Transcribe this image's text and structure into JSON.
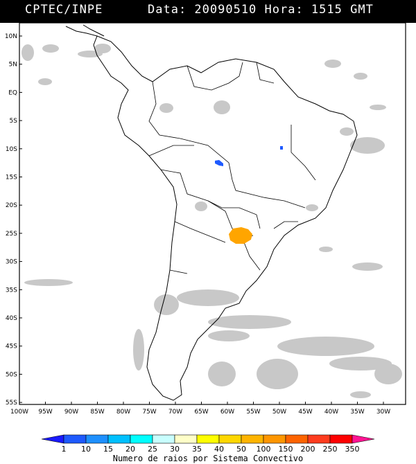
{
  "header": {
    "source": "CPTEC/INPE",
    "datetime": "Data: 20090510 Hora: 1515 GMT"
  },
  "map": {
    "lat_labels": [
      "10N",
      "5N",
      "EQ",
      "5S",
      "10S",
      "15S",
      "20S",
      "25S",
      "30S",
      "35S",
      "40S",
      "45S",
      "50S",
      "55S"
    ],
    "lon_labels": [
      "100W",
      "95W",
      "90W",
      "85W",
      "80W",
      "75W",
      "70W",
      "65W",
      "60W",
      "55W",
      "50W",
      "45W",
      "40W",
      "35W",
      "30W"
    ],
    "colors": {
      "land_border": "#000000",
      "cloud": "#c8c8c8",
      "bg": "#ffffff",
      "frame": "#000000"
    }
  },
  "legend": {
    "title": "Numero de raios por Sistema Convectivo",
    "ticks": [
      "1",
      "10",
      "15",
      "20",
      "25",
      "30",
      "35",
      "40",
      "50",
      "100",
      "150",
      "200",
      "250",
      "350"
    ],
    "colors": [
      "#1a1aff",
      "#1e5aff",
      "#1e90ff",
      "#00c0ff",
      "#00ffff",
      "#c8ffff",
      "#ffffc8",
      "#ffff00",
      "#ffd700",
      "#ffb400",
      "#ff9600",
      "#ff6400",
      "#ff3c1e",
      "#ff0000",
      "#ff1493"
    ]
  },
  "features": [
    {
      "name": "orange-storm-cell",
      "category": "40-50",
      "color": "#ffa500"
    },
    {
      "name": "blue-storm-cell-west",
      "category": "10-15",
      "color": "#1e5aff"
    },
    {
      "name": "blue-storm-cell-east",
      "category": "10-15",
      "color": "#1e5aff"
    }
  ]
}
